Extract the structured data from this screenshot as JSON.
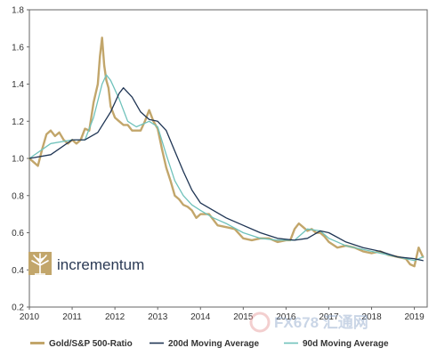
{
  "chart_data": {
    "type": "line",
    "title": "",
    "xlabel": "",
    "ylabel": "",
    "xlim": [
      2010.0,
      2019.3
    ],
    "ylim": [
      0.2,
      1.8
    ],
    "x_ticks": [
      2010,
      2011,
      2012,
      2013,
      2014,
      2015,
      2016,
      2017,
      2018,
      2019
    ],
    "x_tick_labels": [
      "2010",
      "2011",
      "2012",
      "2013",
      "2014",
      "2015",
      "2016",
      "2017",
      "2018",
      "2019"
    ],
    "y_ticks": [
      0.2,
      0.4,
      0.6,
      0.8,
      1.0,
      1.2,
      1.4,
      1.6,
      1.8
    ],
    "y_tick_labels": [
      "0.2",
      "0.4",
      "0.6",
      "0.8",
      "1.0",
      "1.2",
      "1.4",
      "1.6",
      "1.8"
    ],
    "grid": false,
    "legend_position": "bottom",
    "series": [
      {
        "name": "Gold/S&P 500-Ratio",
        "color": "#c2a66b",
        "x": [
          2010.0,
          2010.1,
          2010.2,
          2010.3,
          2010.4,
          2010.5,
          2010.6,
          2010.7,
          2010.8,
          2010.9,
          2011.0,
          2011.1,
          2011.2,
          2011.3,
          2011.4,
          2011.5,
          2011.6,
          2011.65,
          2011.7,
          2011.75,
          2011.8,
          2011.85,
          2011.9,
          2012.0,
          2012.1,
          2012.2,
          2012.3,
          2012.4,
          2012.5,
          2012.6,
          2012.7,
          2012.8,
          2012.9,
          2013.0,
          2013.1,
          2013.2,
          2013.3,
          2013.4,
          2013.5,
          2013.6,
          2013.7,
          2013.8,
          2013.9,
          2014.0,
          2014.2,
          2014.4,
          2014.6,
          2014.8,
          2015.0,
          2015.2,
          2015.4,
          2015.6,
          2015.8,
          2016.0,
          2016.1,
          2016.2,
          2016.3,
          2016.4,
          2016.5,
          2016.6,
          2016.7,
          2016.8,
          2016.9,
          2017.0,
          2017.2,
          2017.4,
          2017.6,
          2017.8,
          2018.0,
          2018.2,
          2018.4,
          2018.6,
          2018.8,
          2018.9,
          2019.0,
          2019.05,
          2019.1,
          2019.2
        ],
        "y": [
          1.0,
          0.98,
          0.96,
          1.05,
          1.13,
          1.15,
          1.12,
          1.14,
          1.1,
          1.08,
          1.1,
          1.08,
          1.1,
          1.16,
          1.15,
          1.3,
          1.4,
          1.55,
          1.65,
          1.5,
          1.42,
          1.38,
          1.28,
          1.22,
          1.2,
          1.18,
          1.18,
          1.15,
          1.15,
          1.15,
          1.2,
          1.26,
          1.2,
          1.16,
          1.05,
          0.95,
          0.88,
          0.8,
          0.78,
          0.75,
          0.74,
          0.72,
          0.68,
          0.7,
          0.7,
          0.64,
          0.63,
          0.62,
          0.57,
          0.56,
          0.57,
          0.57,
          0.55,
          0.56,
          0.56,
          0.62,
          0.65,
          0.63,
          0.61,
          0.62,
          0.6,
          0.6,
          0.58,
          0.55,
          0.52,
          0.53,
          0.52,
          0.5,
          0.49,
          0.5,
          0.48,
          0.47,
          0.46,
          0.43,
          0.42,
          0.47,
          0.52,
          0.47
        ]
      },
      {
        "name": "200d Moving Average",
        "color": "#1f3554",
        "x": [
          2010.0,
          2010.5,
          2011.0,
          2011.3,
          2011.6,
          2011.9,
          2012.1,
          2012.2,
          2012.4,
          2012.6,
          2012.8,
          2013.0,
          2013.2,
          2013.4,
          2013.6,
          2013.8,
          2014.0,
          2014.3,
          2014.6,
          2015.0,
          2015.4,
          2015.8,
          2016.2,
          2016.5,
          2016.8,
          2017.0,
          2017.4,
          2017.8,
          2018.2,
          2018.6,
          2019.0,
          2019.2
        ],
        "y": [
          1.0,
          1.02,
          1.1,
          1.1,
          1.14,
          1.25,
          1.35,
          1.38,
          1.33,
          1.25,
          1.21,
          1.2,
          1.15,
          1.04,
          0.93,
          0.83,
          0.76,
          0.72,
          0.68,
          0.64,
          0.6,
          0.57,
          0.56,
          0.57,
          0.61,
          0.6,
          0.55,
          0.52,
          0.5,
          0.47,
          0.46,
          0.45
        ]
      },
      {
        "name": "90d Moving Average",
        "color": "#6fc2bb",
        "x": [
          2010.0,
          2010.5,
          2011.0,
          2011.3,
          2011.5,
          2011.7,
          2011.8,
          2011.9,
          2012.1,
          2012.3,
          2012.5,
          2012.8,
          2013.0,
          2013.2,
          2013.4,
          2013.6,
          2013.8,
          2014.0,
          2014.3,
          2014.6,
          2015.0,
          2015.4,
          2015.8,
          2016.2,
          2016.5,
          2016.8,
          2017.0,
          2017.4,
          2017.8,
          2018.2,
          2018.6,
          2019.0,
          2019.2
        ],
        "y": [
          1.0,
          1.08,
          1.1,
          1.1,
          1.22,
          1.4,
          1.45,
          1.42,
          1.32,
          1.2,
          1.17,
          1.2,
          1.17,
          1.02,
          0.88,
          0.8,
          0.75,
          0.72,
          0.68,
          0.65,
          0.6,
          0.57,
          0.56,
          0.56,
          0.62,
          0.61,
          0.57,
          0.53,
          0.51,
          0.49,
          0.47,
          0.45,
          0.47
        ]
      }
    ]
  },
  "logo": {
    "brand": "incrementum",
    "color": "#c2a66b"
  },
  "watermark": {
    "text": "FX678 汇通网",
    "color": "#8aa3c8"
  },
  "colors": {
    "axis": "#666666",
    "background": "#ffffff"
  }
}
